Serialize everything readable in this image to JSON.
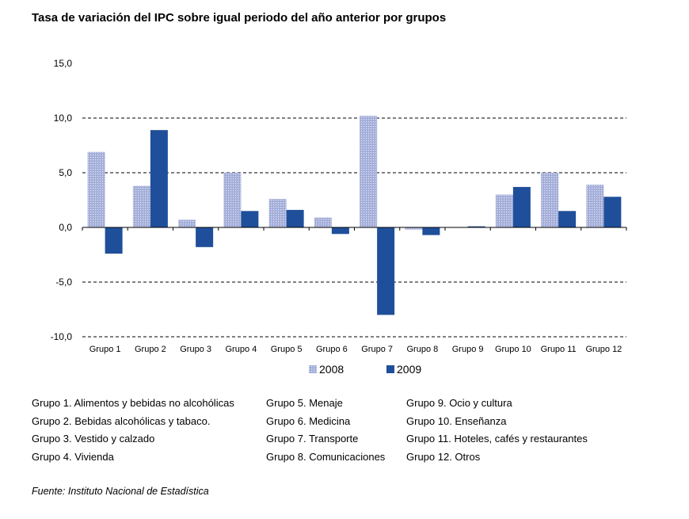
{
  "chart_data": {
    "type": "bar",
    "title": "Tasa de variación del IPC sobre igual periodo del año anterior por grupos",
    "categories": [
      "Grupo 1",
      "Grupo 2",
      "Grupo 3",
      "Grupo 4",
      "Grupo 5",
      "Grupo 6",
      "Grupo 7",
      "Grupo 8",
      "Grupo 9",
      "Grupo 10",
      "Grupo 11",
      "Grupo 12"
    ],
    "series": [
      {
        "name": "2008",
        "color": "#aab4dc",
        "values": [
          6.9,
          3.8,
          0.7,
          5.0,
          2.6,
          0.9,
          10.2,
          -0.2,
          0.0,
          3.0,
          5.0,
          3.9
        ]
      },
      {
        "name": "2009",
        "color": "#1f4f9a",
        "values": [
          -2.4,
          8.9,
          -1.8,
          1.5,
          1.6,
          -0.6,
          -8.0,
          -0.7,
          0.1,
          3.7,
          1.5,
          2.8
        ]
      }
    ],
    "ylim": [
      -10,
      15
    ],
    "yticks": [
      "15,0",
      "10,0",
      "5,0",
      "0,0",
      "-5,0",
      "-10,0"
    ],
    "ytick_values": [
      15,
      10,
      5,
      0,
      -5,
      -10
    ],
    "grid": "dashed horizontal",
    "legend": "bottom-center"
  },
  "group_legend": {
    "col1": [
      "Grupo 1. Alimentos y bebidas no alcohólicas",
      "Grupo 2. Bebidas alcohólicas y  tabaco.",
      "Grupo 3. Vestido y calzado",
      "Grupo 4. Vivienda"
    ],
    "col2": [
      "Grupo 5. Menaje",
      "Grupo 6. Medicina",
      "Grupo 7. Transporte",
      "Grupo 8. Comunicaciones"
    ],
    "col3": [
      "Grupo 9. Ocio y cultura",
      "Grupo 10. Enseñanza",
      "Grupo 11. Hoteles, cafés y restaurantes",
      "Grupo 12. Otros"
    ]
  },
  "source": "Fuente: Instituto Nacional de Estadística"
}
